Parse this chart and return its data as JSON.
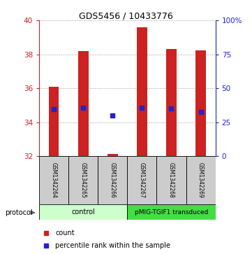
{
  "title": "GDS5456 / 10433776",
  "samples": [
    "GSM1342264",
    "GSM1342265",
    "GSM1342266",
    "GSM1342267",
    "GSM1342268",
    "GSM1342269"
  ],
  "bar_tops": [
    36.1,
    38.2,
    32.15,
    39.6,
    38.3,
    38.25
  ],
  "bar_bottoms": [
    32.0,
    32.0,
    32.0,
    32.0,
    32.0,
    32.0
  ],
  "percentile_y": [
    34.75,
    34.85,
    34.4,
    34.85,
    34.82,
    34.62
  ],
  "ylim_left": [
    32,
    40
  ],
  "yticks_left": [
    32,
    34,
    36,
    38,
    40
  ],
  "yticks_right": [
    0,
    25,
    50,
    75,
    100
  ],
  "ytick_right_labels": [
    "0",
    "25",
    "50",
    "75",
    "100%"
  ],
  "bar_color": "#cc2222",
  "blue_color": "#2222cc",
  "bar_width": 0.35,
  "control_label": "control",
  "transduced_label": "pMIG-TGIF1 transduced",
  "protocol_label": "protocol",
  "legend_count": "count",
  "legend_percentile": "percentile rank within the sample",
  "grid_color": "#999999",
  "bg_color": "#ffffff",
  "sample_bg": "#cccccc",
  "control_bg": "#ccffcc",
  "transduced_bg": "#44dd44"
}
